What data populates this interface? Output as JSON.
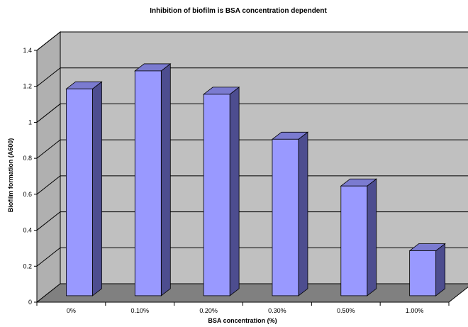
{
  "chart_data": {
    "type": "bar",
    "title": "Inhibition of biofilm is BSA concentration dependent",
    "xlabel": "BSA concentration (%)",
    "ylabel": "Biofilm formation  (A600)",
    "categories": [
      "0%",
      "0.10%",
      "0.20%",
      "0.30%",
      "0.50%",
      "1.00%"
    ],
    "values": [
      1.15,
      1.25,
      1.12,
      0.87,
      0.61,
      0.25
    ],
    "ylim": [
      0,
      1.4
    ],
    "yticks": [
      "0",
      "0.2",
      "0.4",
      "0.6",
      "0.8",
      "1",
      "1.2",
      "1.4"
    ],
    "grid": true,
    "legend": "none",
    "colors": {
      "bar_front": "#9999ff",
      "bar_side": "#4d4d8f",
      "bar_top": "#7b7bd0",
      "wall": "#c0c0c0",
      "floor": "#808080"
    }
  }
}
